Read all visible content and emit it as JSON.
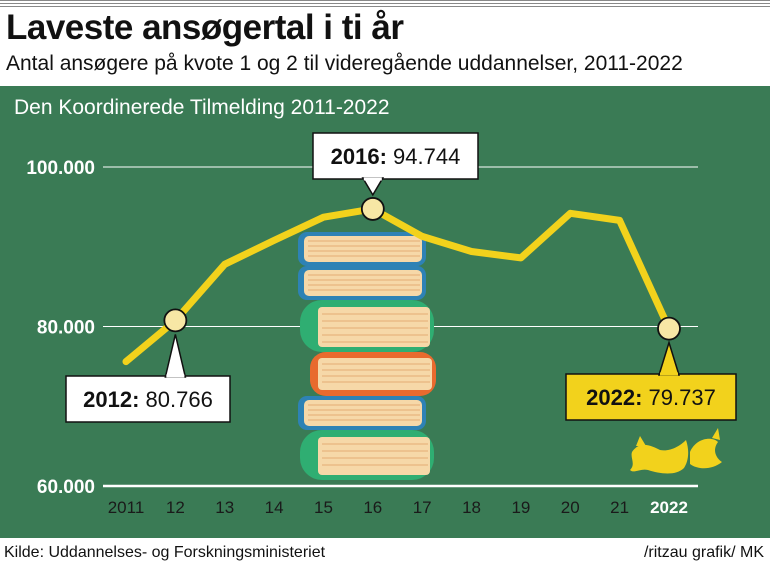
{
  "header": {
    "title": "Laveste ansøgertal i ti år",
    "subtitle": "Antal ansøgere på kvote 1 og 2 til videregående uddannelser, 2011-2022"
  },
  "panel_title": "Den Koordinerede Tilmelding 2011-2022",
  "footer": {
    "source": "Kilde: Uddannelses- og Forskningsministeriet",
    "credit": "/ritzau grafik/ MK"
  },
  "colors": {
    "background": "#3a7b55",
    "line": "#f2d21c",
    "marker_fill": "#f7e7a5",
    "grid": "#ffffff"
  },
  "chart_data": {
    "type": "line",
    "x": [
      2011,
      2012,
      2013,
      2014,
      2015,
      2016,
      2017,
      2018,
      2019,
      2020,
      2021,
      2022
    ],
    "x_tick_labels": [
      "2011",
      "12",
      "13",
      "14",
      "15",
      "16",
      "17",
      "18",
      "19",
      "20",
      "21",
      "2022"
    ],
    "series": [
      {
        "values": [
          75600,
          80766,
          87800,
          90800,
          93700,
          94744,
          91300,
          89400,
          88600,
          94200,
          93300,
          79737
        ]
      }
    ],
    "y_tick_labels": [
      "60.000",
      "80.000",
      "100.000"
    ],
    "y_ticks": [
      60000,
      80000,
      100000
    ],
    "ylim": [
      60000,
      100000
    ],
    "grid": true,
    "annotations": [
      {
        "x": 2012,
        "year": "2012:",
        "value": "80.766"
      },
      {
        "x": 2016,
        "year": "2016:",
        "value": "94.744"
      },
      {
        "x": 2022,
        "year": "2022:",
        "value": "79.737"
      }
    ]
  }
}
